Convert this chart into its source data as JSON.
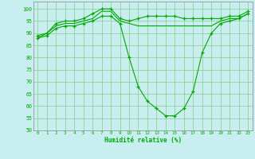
{
  "xlabel": "Humidité relative (%)",
  "background_color": "#c8eef0",
  "grid_color": "#88cc88",
  "line_color": "#00aa00",
  "x": [
    0,
    1,
    2,
    3,
    4,
    5,
    6,
    7,
    8,
    9,
    10,
    11,
    12,
    13,
    14,
    15,
    16,
    17,
    18,
    19,
    20,
    21,
    22,
    23
  ],
  "line1": [
    89,
    90,
    94,
    95,
    95,
    96,
    98,
    100,
    100,
    96,
    95,
    96,
    97,
    97,
    97,
    97,
    96,
    96,
    96,
    96,
    96,
    97,
    97,
    99
  ],
  "line2": [
    88,
    90,
    93,
    94,
    94,
    95,
    96,
    99,
    99,
    95,
    94,
    93,
    93,
    93,
    93,
    93,
    93,
    93,
    93,
    93,
    95,
    96,
    96,
    98
  ],
  "line3": [
    88,
    89,
    92,
    93,
    93,
    94,
    95,
    97,
    97,
    94,
    80,
    68,
    62,
    59,
    56,
    56,
    59,
    66,
    82,
    90,
    94,
    95,
    96,
    98
  ],
  "ylim": [
    50,
    103
  ],
  "yticks": [
    50,
    55,
    60,
    65,
    70,
    75,
    80,
    85,
    90,
    95,
    100
  ],
  "xlim": [
    -0.5,
    23.5
  ],
  "marker": "+"
}
